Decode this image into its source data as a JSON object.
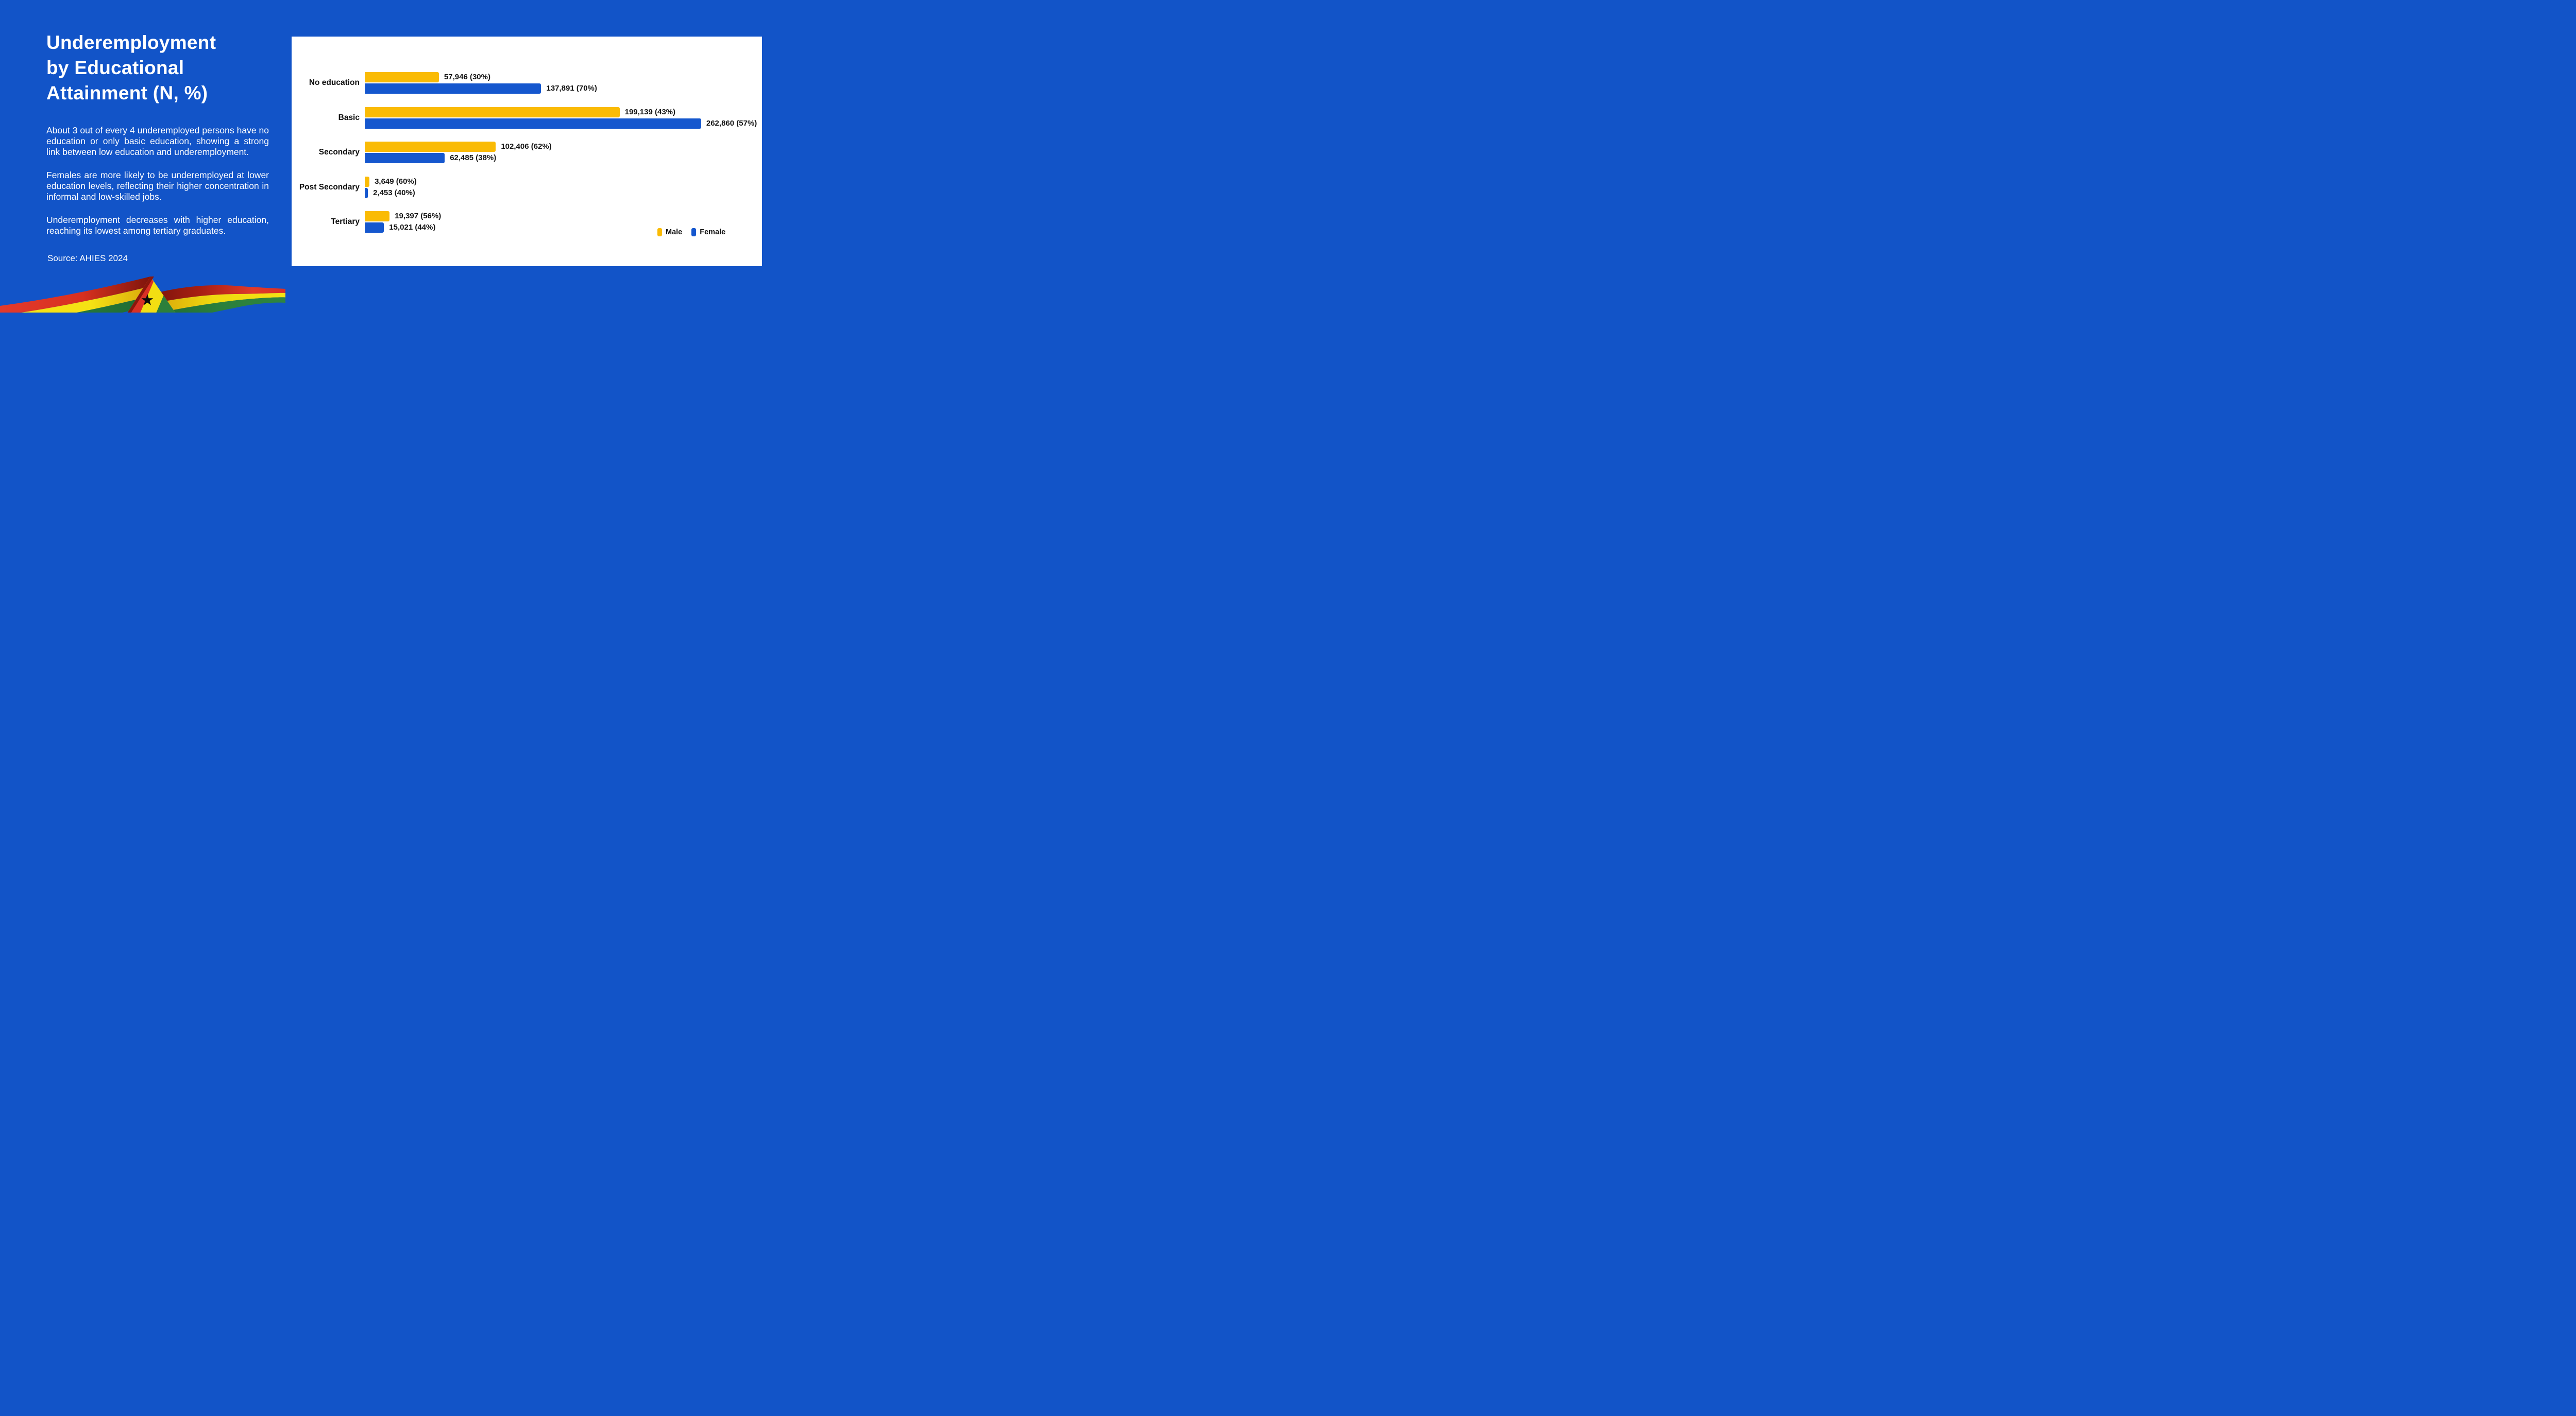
{
  "page": {
    "background_color": "#1254C8"
  },
  "left_panel": {
    "title": "Underemployment by Educational Attainment (N, %)",
    "title_lines": [
      "Underemployment",
      "by Educational",
      "Attainment (N, %)"
    ],
    "paragraphs": [
      "About 3 out of every 4 underemployed persons have no education or only basic education, showing a strong link between low education and underemployment.",
      "Females are more likely to be underemployed at lower education levels, reflecting their higher concentration in informal and low-skilled jobs.",
      "Underemployment decreases with higher education, reaching its lowest among tertiary graduates."
    ],
    "source": "Source: AHIES 2024",
    "flag": {
      "name": "ghana-flag-ribbon",
      "colors": {
        "red": "#D93025",
        "dark_red": "#7E150C",
        "yellow": "#F5E214",
        "green": "#2E8540",
        "star": "#0B0B0B"
      }
    }
  },
  "chart_data": {
    "type": "bar",
    "orientation": "horizontal",
    "title": "",
    "xlabel": "",
    "ylabel": "",
    "categories": [
      "No education",
      "Basic",
      "Secondary",
      "Post Secondary",
      "Tertiary"
    ],
    "series": [
      {
        "name": "Male",
        "color": "#FABB05",
        "values": [
          57946,
          199139,
          102406,
          3649,
          19397
        ],
        "percents": [
          30,
          43,
          62,
          60,
          56
        ],
        "labels": [
          "57,946 (30%)",
          "199,139 (43%)",
          "102,406 (62%)",
          "3,649 (60%)",
          "19,397 (56%)"
        ]
      },
      {
        "name": "Female",
        "color": "#1557CE",
        "values": [
          137891,
          262860,
          62485,
          2453,
          15021
        ],
        "percents": [
          70,
          57,
          38,
          40,
          44
        ],
        "labels": [
          "137,891 (70%)",
          "262,860 (57%)",
          "62,485 (38%)",
          "2,453 (40%)",
          "15,021 (44%)"
        ]
      }
    ],
    "legend": {
      "position": "bottom-right",
      "items": [
        {
          "label": "Male",
          "color": "#FABB05"
        },
        {
          "label": "Female",
          "color": "#1557CE"
        }
      ]
    },
    "xlim": [
      0,
      308000
    ],
    "grid": false,
    "panel_background": "#FFFFFF",
    "value_label_color": "#141414"
  }
}
